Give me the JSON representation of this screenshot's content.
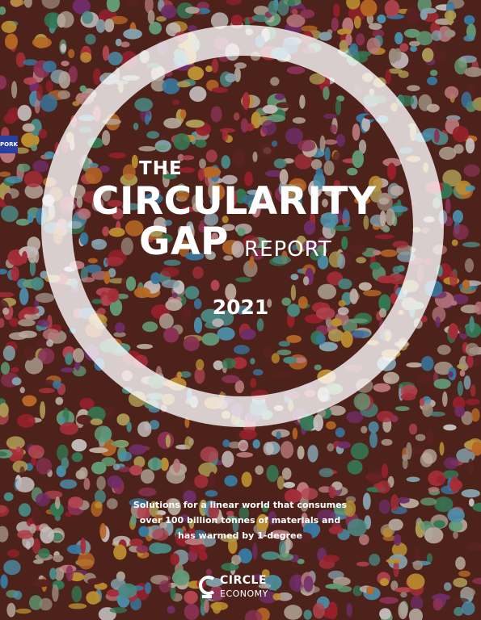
{
  "cover": {
    "title_the": "THE",
    "title_main": "CIRCULARITY",
    "title_gap": "GAP",
    "title_report": "REPORT",
    "year": "2021",
    "tagline": [
      "Solutions for a linear world that consumes",
      "over 100 billion tonnes of materials and",
      "has warmed by 1-degree"
    ]
  },
  "logo": {
    "name": "CIRCLE",
    "sub": "ECONOMY"
  },
  "badge_text": "PORK",
  "colors": {
    "background": "#5a2a22",
    "text": "#ffffff",
    "ring": "#ffffff"
  },
  "background_image": "gum-wall-photo"
}
